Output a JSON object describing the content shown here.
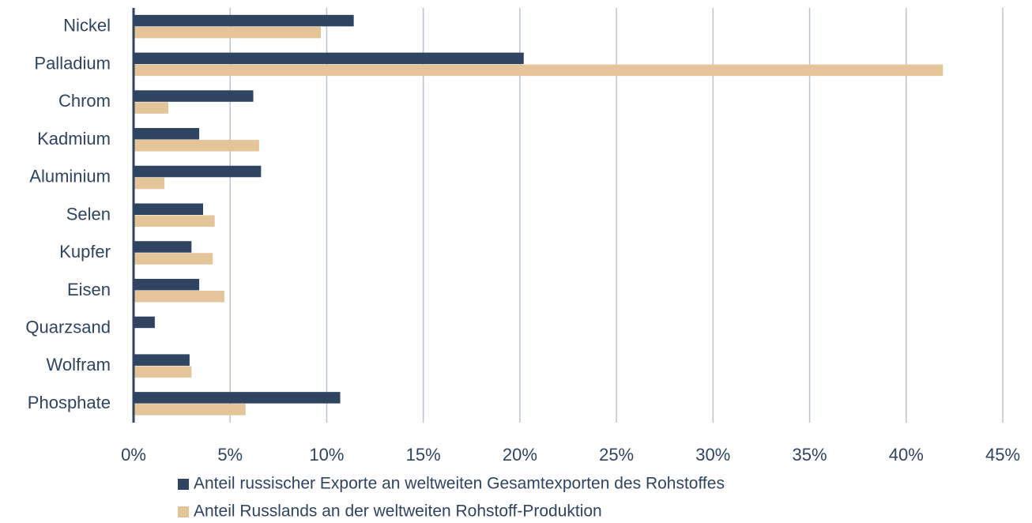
{
  "chart_data": {
    "type": "hbar",
    "categories": [
      "Nickel",
      "Palladium",
      "Chrom",
      "Kadmium",
      "Aluminium",
      "Selen",
      "Kupfer",
      "Eisen",
      "Quarzsand",
      "Wolfram",
      "Phosphate"
    ],
    "series": [
      {
        "name": "Anteil russischer Exporte an weltweiten Gesamtexporten des Rohstoffes",
        "color": "#2e4461",
        "values": [
          11.4,
          20.2,
          6.2,
          3.4,
          6.6,
          3.6,
          3.0,
          3.4,
          1.1,
          2.9,
          10.7
        ]
      },
      {
        "name": "Anteil Russlands an der weltweiten Rohstoff-Produktion",
        "color": "#e4c59a",
        "values": [
          9.7,
          41.9,
          1.8,
          6.5,
          1.6,
          4.2,
          4.1,
          4.7,
          0,
          3.0,
          5.8
        ]
      }
    ],
    "xlim": [
      0,
      45
    ],
    "xticks": [
      {
        "value": 0,
        "label": "0%"
      },
      {
        "value": 5,
        "label": "5%"
      },
      {
        "value": 10,
        "label": "10%"
      },
      {
        "value": 15,
        "label": "15%"
      },
      {
        "value": 20,
        "label": "20%"
      },
      {
        "value": 25,
        "label": "25%"
      },
      {
        "value": 30,
        "label": "30%"
      },
      {
        "value": 35,
        "label": "35%"
      },
      {
        "value": 40,
        "label": "40%"
      },
      {
        "value": 45,
        "label": "45%"
      }
    ],
    "grid": true,
    "legend": "bottom"
  }
}
